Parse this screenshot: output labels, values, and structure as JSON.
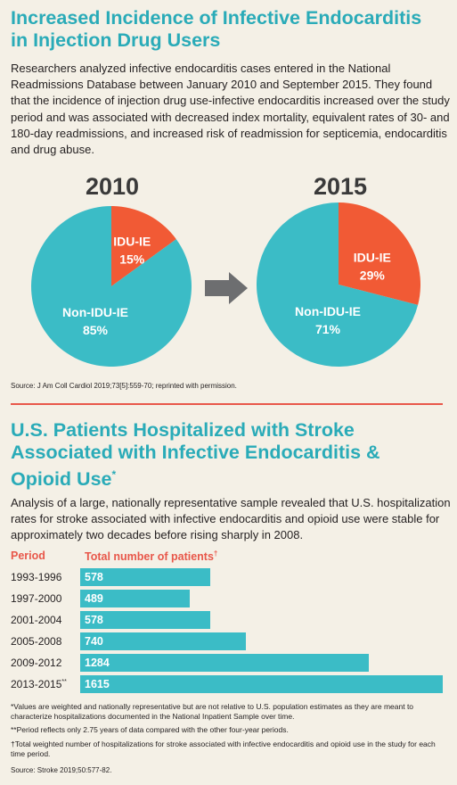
{
  "section1": {
    "title_line1": "Increased Incidence of Infective Endocarditis",
    "title_line2": "in Injection Drug Users",
    "paragraph": "Researchers analyzed infective endocarditis cases entered in the National Readmissions Database between January 2010 and September 2015. They found that the incidence of injection drug use-infective endocarditis increased over the study period and was associated with decreased index mortality, equivalent rates of 30- and 180-day readmissions, and increased risk of readmission for septicemia, endocarditis and drug abuse.",
    "source": "Source: J Am Coll Cardiol 2019;73[5]:559-70; reprinted with permission."
  },
  "section2": {
    "title_line1": "U.S. Patients Hospitalized with Stroke",
    "title_line2": "Associated with Infective Endocarditis &",
    "title_line3": "Opioid Use",
    "title_mark": "*",
    "paragraph": "Analysis of a large, nationally representative sample revealed that U.S. hospitalization rates for stroke associated with infective endocarditis and opioid use were stable for approximately two decades before rising sharply in 2008.",
    "col_period": "Period",
    "col_total": "Total number of patients",
    "col_total_mark": "†",
    "footnote1": "*Values are weighted and nationally representative but are not relative to U.S. population estimates as they are meant to characterize hospitalizations documented in the National Inpatient Sample over time.",
    "footnote2": "**Period reflects only 2.75 years of data compared with the other four-year periods.",
    "footnote3": "†Total weighted number of hospitalizations for stroke associated with infective endocarditis and opioid use in the study for each time period.",
    "source": "Source: Stroke 2019;50:577-82."
  },
  "colors": {
    "teal": "#3bbcc6",
    "orange": "#f15a35",
    "title": "#2aabb8",
    "accent": "#e8574a",
    "arrow": "#6d6e70"
  },
  "chart_data": [
    {
      "type": "pie",
      "title": "2010",
      "slices": [
        {
          "label": "IDU-IE",
          "value": 15,
          "display": "15%",
          "color": "#f15a35"
        },
        {
          "label": "Non-IDU-IE",
          "value": 85,
          "display": "85%",
          "color": "#3bbcc6"
        }
      ]
    },
    {
      "type": "pie",
      "title": "2015",
      "slices": [
        {
          "label": "IDU-IE",
          "value": 29,
          "display": "29%",
          "color": "#f15a35"
        },
        {
          "label": "Non-IDU-IE",
          "value": 71,
          "display": "71%",
          "color": "#3bbcc6"
        }
      ]
    },
    {
      "type": "bar",
      "orientation": "horizontal",
      "categories": [
        "1993-1996",
        "1997-2000",
        "2001-2004",
        "2005-2008",
        "2009-2012",
        "2013-2015"
      ],
      "category_marks": [
        "",
        "",
        "",
        "",
        "",
        "**"
      ],
      "values": [
        578,
        489,
        578,
        740,
        1284,
        1615
      ],
      "xlim": [
        0,
        1615
      ]
    }
  ]
}
